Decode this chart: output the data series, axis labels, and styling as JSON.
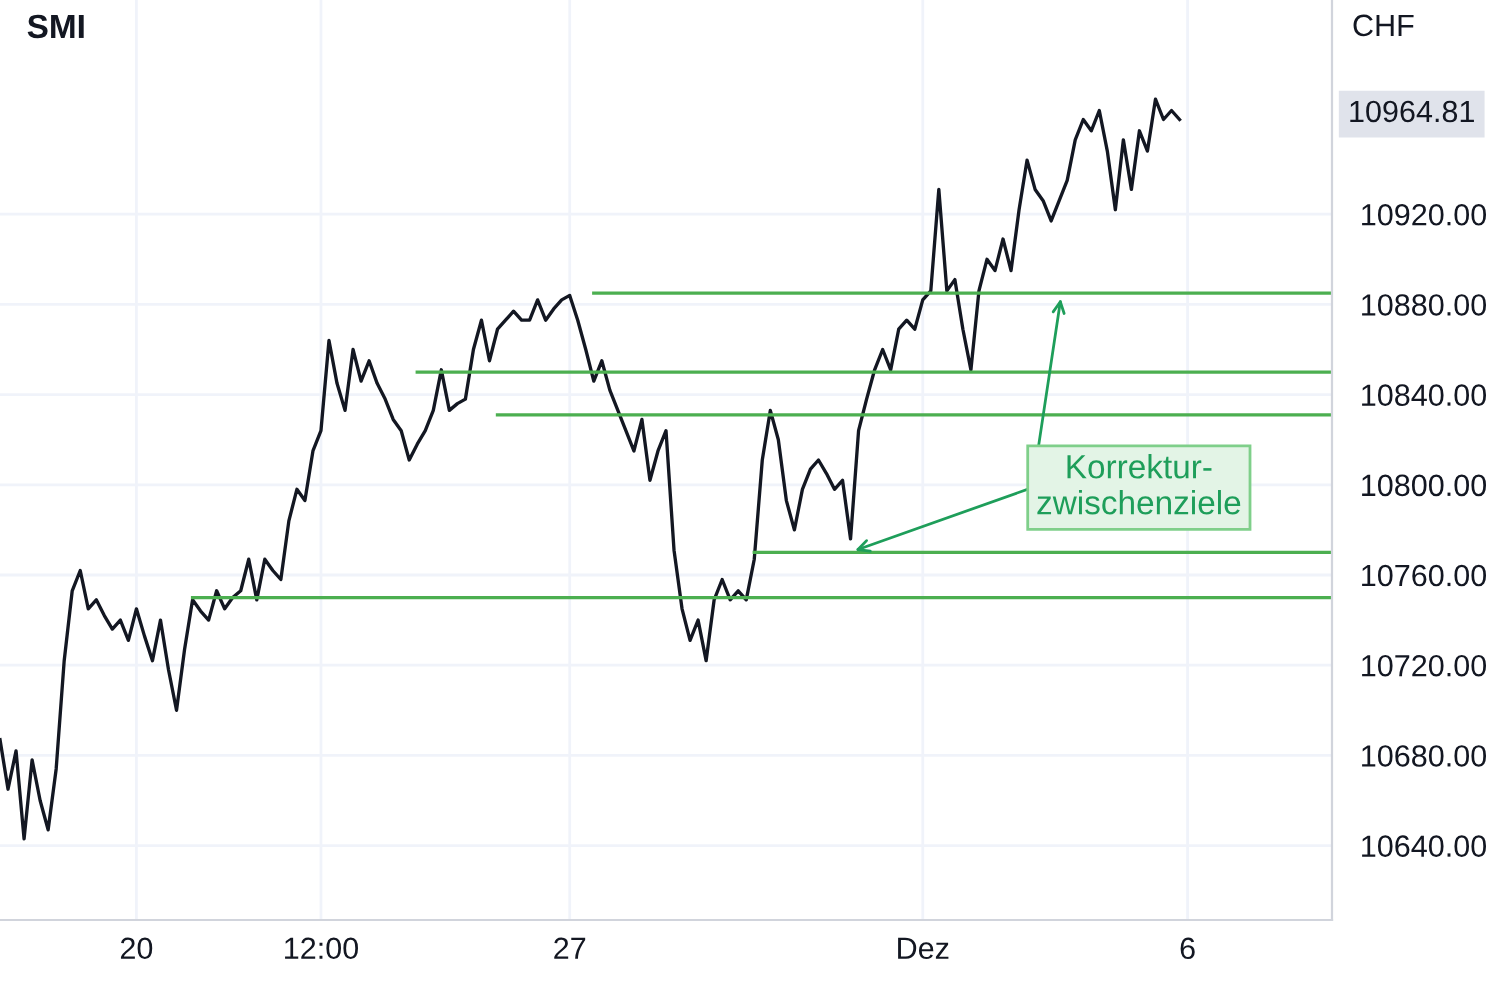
{
  "chart_data": {
    "type": "line",
    "title": "SMI",
    "categories": [
      null,
      null,
      null,
      null,
      null,
      null,
      null,
      null,
      null,
      null,
      null,
      null,
      null,
      null,
      null,
      null,
      null,
      "20",
      null,
      null,
      null,
      null,
      null,
      null,
      null,
      null,
      null,
      null,
      null,
      null,
      null,
      null,
      null,
      null,
      null,
      null,
      null,
      null,
      null,
      null,
      "12:00",
      null,
      null,
      null,
      null,
      null,
      null,
      null,
      null,
      null,
      null,
      null,
      null,
      null,
      null,
      null,
      null,
      null,
      null,
      null,
      null,
      null,
      null,
      null,
      null,
      null,
      null,
      null,
      null,
      null,
      null,
      "27",
      null,
      null,
      null,
      null,
      null,
      null,
      null,
      null,
      null,
      null,
      null,
      null,
      null,
      null,
      null,
      null,
      null,
      null,
      null,
      null,
      null,
      null,
      null,
      null,
      null,
      null,
      null,
      null,
      null,
      null,
      null,
      null,
      null,
      null,
      null,
      null,
      null,
      null,
      null,
      null,
      null,
      null,
      null,
      "Dez",
      null,
      null,
      null,
      null,
      null,
      null,
      null,
      null,
      null,
      null,
      null,
      null,
      null,
      null,
      null,
      null,
      null,
      null,
      null,
      null,
      null,
      null,
      null,
      null,
      null,
      null,
      null,
      null,
      null,
      null,
      null,
      null,
      "6",
      null,
      null,
      null,
      null,
      null,
      null,
      null,
      null,
      null,
      null,
      null,
      null,
      null,
      null,
      null,
      null,
      null,
      null
    ],
    "ylim": [
      10607,
      11015
    ],
    "yticks": [
      {
        "value": 10640,
        "label": "10640.00"
      },
      {
        "value": 10680,
        "label": "10680.00"
      },
      {
        "value": 10720,
        "label": "10720.00"
      },
      {
        "value": 10760,
        "label": "10760.00"
      },
      {
        "value": 10800,
        "label": "10800.00"
      },
      {
        "value": 10840,
        "label": "10840.00"
      },
      {
        "value": 10880,
        "label": "10880.00"
      },
      {
        "value": 10920,
        "label": "10920.00"
      }
    ],
    "ylabel": "CHF",
    "grid": true,
    "series": [
      {
        "color": "#131722",
        "values": [
          10687,
          10665,
          10682,
          10643,
          10678,
          10660,
          10647,
          10674,
          10722,
          10753,
          10762,
          10745,
          10749,
          10742,
          10736,
          10740,
          10731,
          10745,
          10733,
          10722,
          10740,
          10718,
          10700,
          10727,
          10749,
          10744,
          10740,
          10753,
          10745,
          10750,
          10753,
          10767,
          10749,
          10767,
          10762,
          10758,
          10784,
          10798,
          10793,
          10815,
          10824,
          10864,
          10845,
          10833,
          10860,
          10846,
          10855,
          10845,
          10838,
          10829,
          10824,
          10811,
          10818,
          10824,
          10833,
          10851,
          10833,
          10836,
          10838,
          10860,
          10873,
          10855,
          10869,
          10873,
          10877,
          10873,
          10873,
          10882,
          10873,
          10878,
          10882,
          10884,
          10873,
          10860,
          10846,
          10855,
          10842,
          10833,
          10824,
          10815,
          10829,
          10802,
          10815,
          10824,
          10771,
          10745,
          10731,
          10740,
          10722,
          10749,
          10758,
          10749,
          10753,
          10749,
          10767,
          10811,
          10833,
          10820,
          10793,
          10780,
          10798,
          10807,
          10811,
          10805,
          10798,
          10802,
          10776,
          10824,
          10838,
          10851,
          10860,
          10851,
          10869,
          10873,
          10869,
          10882,
          10886,
          10931,
          10886,
          10891,
          10869,
          10851,
          10886,
          10900,
          10895,
          10909,
          10895,
          10922,
          10944,
          10931,
          10926,
          10917,
          10926,
          10935,
          10953,
          10962,
          10957,
          10966,
          10948,
          10922,
          10953,
          10931,
          10957,
          10948,
          10971,
          10962,
          10966,
          10962,
          null,
          null,
          null,
          null,
          null,
          null,
          null,
          null,
          null,
          null,
          null,
          null,
          null,
          null,
          null,
          null,
          null,
          null,
          null
        ]
      },
      {
        "color": "#4caf50",
        "values": [
          null,
          null,
          null,
          null,
          null,
          null,
          null,
          null,
          null,
          null,
          null,
          null,
          null,
          null,
          null,
          null,
          null,
          null,
          null,
          null,
          null,
          null,
          null,
          null,
          null,
          null,
          null,
          null,
          null,
          null,
          null,
          null,
          null,
          null,
          null,
          null,
          null,
          null,
          null,
          null,
          null,
          null,
          null,
          null,
          null,
          null,
          null,
          null,
          null,
          null,
          null,
          null,
          null,
          null,
          null,
          null,
          null,
          null,
          null,
          null,
          null,
          null,
          null,
          null,
          null,
          null,
          null,
          null,
          null,
          null,
          null,
          null,
          null,
          null,
          10885,
          null,
          null,
          null,
          null,
          null,
          null,
          null,
          null,
          null,
          null,
          null,
          null,
          null,
          null,
          null,
          null,
          null,
          null,
          null,
          null,
          null,
          null,
          null,
          null,
          null,
          null,
          null,
          null,
          null,
          null,
          null,
          null,
          null,
          null,
          null,
          null,
          null,
          null,
          null,
          null,
          null,
          null,
          null,
          null,
          null,
          null,
          null,
          null,
          null,
          null,
          null,
          null,
          null,
          null,
          null,
          null,
          null,
          null,
          null,
          null,
          null,
          null,
          null,
          null,
          null,
          null,
          null,
          null,
          null,
          null,
          null,
          null,
          null,
          null,
          null,
          null,
          null,
          null,
          null,
          null,
          null,
          null,
          null,
          null,
          null,
          null,
          null,
          null,
          null,
          null,
          null,
          10885
        ]
      },
      {
        "color": "#4caf50",
        "values": [
          null,
          null,
          null,
          null,
          null,
          null,
          null,
          null,
          null,
          null,
          null,
          null,
          null,
          null,
          null,
          null,
          null,
          null,
          null,
          null,
          null,
          null,
          null,
          null,
          null,
          null,
          null,
          null,
          null,
          null,
          null,
          null,
          null,
          null,
          null,
          null,
          null,
          null,
          null,
          null,
          null,
          null,
          null,
          null,
          null,
          null,
          null,
          null,
          null,
          null,
          null,
          null,
          10850,
          null,
          null,
          null,
          null,
          null,
          null,
          null,
          null,
          null,
          null,
          null,
          null,
          null,
          null,
          null,
          null,
          null,
          null,
          null,
          null,
          null,
          null,
          null,
          null,
          null,
          null,
          null,
          null,
          null,
          null,
          null,
          null,
          null,
          null,
          null,
          null,
          null,
          null,
          null,
          null,
          null,
          null,
          null,
          null,
          null,
          null,
          null,
          null,
          null,
          null,
          null,
          null,
          null,
          null,
          null,
          null,
          null,
          null,
          null,
          null,
          null,
          null,
          null,
          null,
          null,
          null,
          null,
          null,
          null,
          null,
          null,
          null,
          null,
          null,
          null,
          null,
          null,
          null,
          null,
          null,
          null,
          null,
          null,
          null,
          null,
          null,
          null,
          null,
          null,
          null,
          null,
          null,
          null,
          null,
          null,
          null,
          null,
          null,
          null,
          null,
          null,
          null,
          null,
          null,
          null,
          null,
          null,
          null,
          null,
          null,
          null,
          null,
          null,
          10850
        ]
      },
      {
        "color": "#4caf50",
        "values": [
          null,
          null,
          null,
          null,
          null,
          null,
          null,
          null,
          null,
          null,
          null,
          null,
          null,
          null,
          null,
          null,
          null,
          null,
          null,
          null,
          null,
          null,
          null,
          null,
          null,
          null,
          null,
          null,
          null,
          null,
          null,
          null,
          null,
          null,
          null,
          null,
          null,
          null,
          null,
          null,
          null,
          null,
          null,
          null,
          null,
          null,
          null,
          null,
          null,
          null,
          null,
          null,
          null,
          null,
          null,
          null,
          null,
          null,
          null,
          null,
          null,
          null,
          10831,
          null,
          null,
          null,
          null,
          null,
          null,
          null,
          null,
          null,
          null,
          null,
          null,
          null,
          null,
          null,
          null,
          null,
          null,
          null,
          null,
          null,
          null,
          null,
          null,
          null,
          null,
          null,
          null,
          null,
          null,
          null,
          null,
          null,
          null,
          null,
          null,
          null,
          null,
          null,
          null,
          null,
          null,
          null,
          null,
          null,
          null,
          null,
          null,
          null,
          null,
          null,
          null,
          null,
          null,
          null,
          null,
          null,
          null,
          null,
          null,
          null,
          null,
          null,
          null,
          null,
          null,
          null,
          null,
          null,
          null,
          null,
          null,
          null,
          null,
          null,
          null,
          null,
          null,
          null,
          null,
          null,
          null,
          null,
          null,
          null,
          null,
          null,
          null,
          null,
          null,
          null,
          null,
          null,
          null,
          null,
          null,
          null,
          null,
          null,
          null,
          null,
          null,
          null,
          10831
        ]
      },
      {
        "color": "#4caf50",
        "values": [
          null,
          null,
          null,
          null,
          null,
          null,
          null,
          null,
          null,
          null,
          null,
          null,
          null,
          null,
          null,
          null,
          null,
          null,
          null,
          null,
          null,
          null,
          null,
          null,
          null,
          null,
          null,
          null,
          null,
          null,
          null,
          null,
          null,
          null,
          null,
          null,
          null,
          null,
          null,
          null,
          null,
          null,
          null,
          null,
          null,
          null,
          null,
          null,
          null,
          null,
          null,
          null,
          null,
          null,
          null,
          null,
          null,
          null,
          null,
          null,
          null,
          null,
          null,
          null,
          null,
          null,
          null,
          null,
          null,
          null,
          null,
          null,
          null,
          null,
          null,
          null,
          null,
          null,
          null,
          null,
          null,
          null,
          null,
          null,
          null,
          null,
          null,
          null,
          null,
          null,
          null,
          null,
          null,
          null,
          10770,
          null,
          null,
          null,
          null,
          null,
          null,
          null,
          null,
          null,
          null,
          null,
          null,
          null,
          null,
          null,
          null,
          null,
          null,
          null,
          null,
          null,
          null,
          null,
          null,
          null,
          null,
          null,
          null,
          null,
          null,
          null,
          null,
          null,
          null,
          null,
          null,
          null,
          null,
          null,
          null,
          null,
          null,
          null,
          null,
          null,
          null,
          null,
          null,
          null,
          null,
          null,
          null,
          null,
          null,
          null,
          null,
          null,
          null,
          null,
          null,
          null,
          null,
          null,
          null,
          null,
          null,
          null,
          null,
          null,
          null,
          null,
          10770
        ]
      },
      {
        "color": "#4caf50",
        "values": [
          null,
          null,
          null,
          null,
          null,
          null,
          null,
          null,
          null,
          null,
          null,
          null,
          null,
          null,
          null,
          null,
          null,
          null,
          null,
          null,
          null,
          null,
          null,
          null,
          10750,
          null,
          null,
          null,
          null,
          null,
          null,
          null,
          null,
          null,
          null,
          null,
          null,
          null,
          null,
          null,
          null,
          null,
          null,
          null,
          null,
          null,
          null,
          null,
          null,
          null,
          null,
          null,
          null,
          null,
          null,
          null,
          null,
          null,
          null,
          null,
          null,
          null,
          null,
          null,
          null,
          null,
          null,
          null,
          null,
          null,
          null,
          null,
          null,
          null,
          null,
          null,
          null,
          null,
          null,
          null,
          null,
          null,
          null,
          null,
          null,
          null,
          null,
          null,
          null,
          null,
          null,
          null,
          null,
          null,
          null,
          null,
          null,
          null,
          null,
          null,
          null,
          null,
          null,
          null,
          null,
          null,
          null,
          null,
          null,
          null,
          null,
          null,
          null,
          null,
          null,
          null,
          null,
          null,
          null,
          null,
          null,
          null,
          null,
          null,
          null,
          null,
          null,
          null,
          null,
          null,
          null,
          null,
          null,
          null,
          null,
          null,
          null,
          null,
          null,
          null,
          null,
          null,
          null,
          null,
          null,
          null,
          null,
          null,
          null,
          null,
          null,
          null,
          null,
          null,
          null,
          null,
          null,
          null,
          null,
          null,
          null,
          null,
          null,
          null,
          null,
          null,
          10750
        ]
      }
    ],
    "annotations": [
      {
        "text": "Korrektur-\nzwischenziele",
        "y": 10770
      },
      "10964.81"
    ]
  }
}
